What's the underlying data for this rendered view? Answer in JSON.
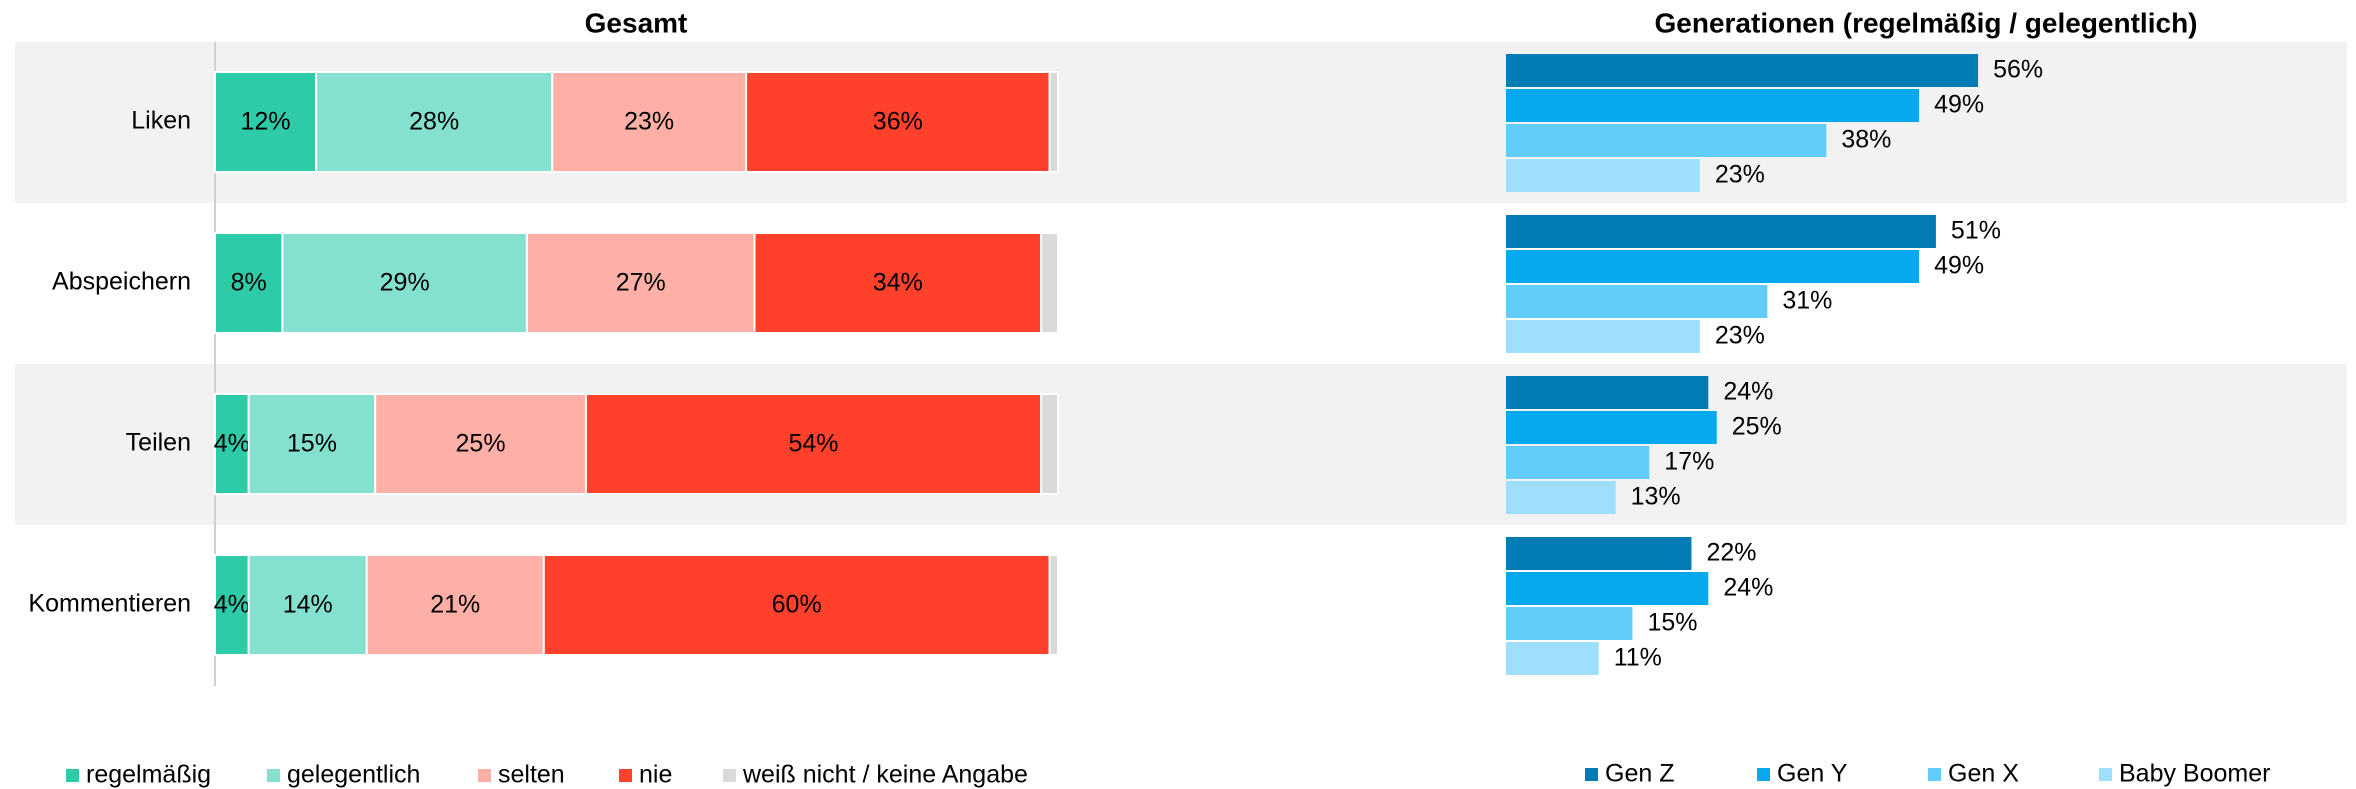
{
  "chart_data": [
    {
      "type": "stacked_bar",
      "title": "Gesamt",
      "categories": [
        "Liken",
        "Abspeichern",
        "Teilen",
        "Kommentieren"
      ],
      "xlim": [
        0,
        100
      ],
      "series": [
        {
          "name": "regelmäßig",
          "color": "#2ecba9",
          "values": [
            12,
            8,
            4,
            4
          ],
          "value_labels": [
            "12%",
            "8%",
            "4%",
            "4%"
          ]
        },
        {
          "name": "gelegentlich",
          "color": "#84e1cf",
          "values": [
            28,
            29,
            15,
            14
          ],
          "value_labels": [
            "28%",
            "29%",
            "15%",
            "14%"
          ]
        },
        {
          "name": "selten",
          "color": "#ffb0a6",
          "values": [
            23,
            27,
            25,
            21
          ],
          "value_labels": [
            "23%",
            "27%",
            "25%",
            "21%"
          ]
        },
        {
          "name": "nie",
          "color": "#ff412c",
          "values": [
            36,
            34,
            54,
            60
          ],
          "value_labels": [
            "36%",
            "34%",
            "54%",
            "60%"
          ]
        },
        {
          "name": "weiß nicht / keine Angabe",
          "color": "#d9d9d9",
          "values": [
            1,
            2,
            2,
            1
          ]
        }
      ]
    },
    {
      "type": "grouped_bar",
      "title": "Generationen (regelmäßig / gelegentlich)",
      "xlim": [
        0,
        100
      ],
      "series": [
        {
          "name": "Gen Z",
          "color": "#037bb4",
          "values": [
            56,
            51,
            24,
            22
          ],
          "value_labels": [
            "56%",
            "51%",
            "24%",
            "22%"
          ]
        },
        {
          "name": "Gen Y",
          "color": "#06a9ee",
          "values": [
            49,
            49,
            25,
            24
          ],
          "value_labels": [
            "49%",
            "49%",
            "25%",
            "24%"
          ]
        },
        {
          "name": "Gen X",
          "color": "#62ccfb",
          "values": [
            38,
            31,
            17,
            15
          ],
          "value_labels": [
            "38%",
            "31%",
            "17%",
            "15%"
          ]
        },
        {
          "name": "Baby Boomer",
          "color": "#9ddffc",
          "values": [
            23,
            23,
            13,
            11
          ],
          "value_labels": [
            "23%",
            "23%",
            "13%",
            "11%"
          ]
        }
      ]
    }
  ]
}
